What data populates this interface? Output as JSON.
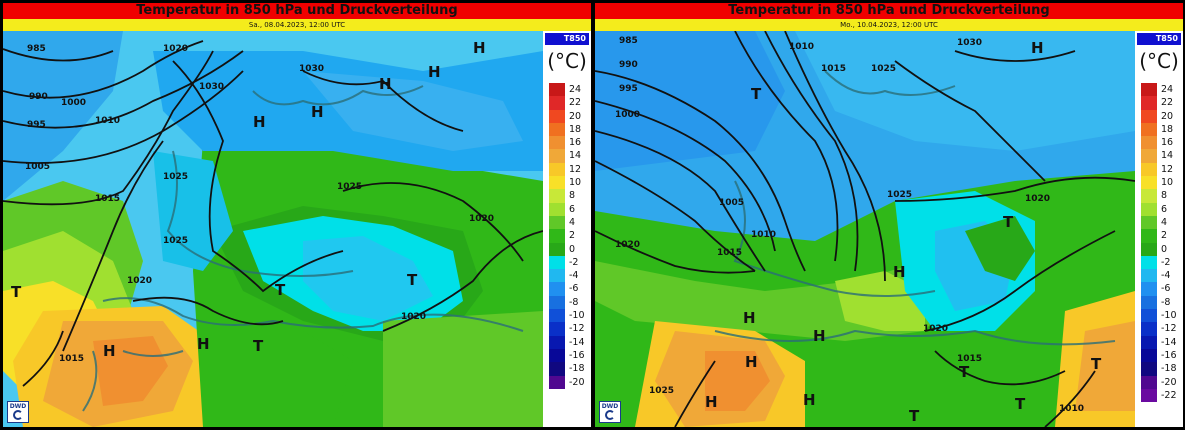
{
  "panels": [
    {
      "title": "Temperatur in 850 hPa und Druckverteilung",
      "date": "Sa., 08.04.2023, 12:00 UTC",
      "tag": "T850",
      "unit": "(°C)",
      "logo": "DWD",
      "isobar_labels": [
        "985",
        "1020",
        "990",
        "1000",
        "1030",
        "995",
        "1010",
        "1005",
        "1030",
        "1025",
        "1025",
        "1015",
        "1025",
        "1020",
        "1020",
        "1015",
        "1020"
      ],
      "pressure_centers": [
        "H",
        "H",
        "H",
        "H",
        "H",
        "H",
        "H",
        "T",
        "T",
        "T",
        "T"
      ]
    },
    {
      "title": "Temperatur in 850 hPa und Druckverteilung",
      "date": "Mo., 10.04.2023, 12:00 UTC",
      "tag": "T850",
      "unit": "(°C)",
      "logo": "DWD",
      "isobar_labels": [
        "985",
        "1010",
        "1030",
        "990",
        "1015",
        "1025",
        "995",
        "1000",
        "1025",
        "1005",
        "1010",
        "1020",
        "1015",
        "1020",
        "1020",
        "1015",
        "1025",
        "1010"
      ],
      "pressure_centers": [
        "H",
        "T",
        "T",
        "H",
        "H",
        "H",
        "H",
        "H",
        "H",
        "T",
        "T",
        "T",
        "T"
      ]
    }
  ],
  "legend_left": {
    "labels": [
      "24",
      "22",
      "20",
      "18",
      "16",
      "14",
      "12",
      "10",
      "8",
      "6",
      "4",
      "2",
      "0",
      "-2",
      "-4",
      "-6",
      "-8",
      "-10",
      "-12",
      "-14",
      "-16",
      "-18",
      "-20"
    ],
    "colors": [
      "#c81818",
      "#e02828",
      "#f04820",
      "#f07020",
      "#f09030",
      "#f0a838",
      "#f8c828",
      "#f8e028",
      "#c8e838",
      "#a0e030",
      "#60c828",
      "#30b818",
      "#28a818",
      "#00e0e8",
      "#20b8f0",
      "#2090f0",
      "#1870e0",
      "#1050d8",
      "#0a30c8",
      "#0818b0",
      "#080898",
      "#100880",
      "#500890"
    ]
  },
  "legend_right": {
    "labels": [
      "24",
      "22",
      "20",
      "18",
      "16",
      "14",
      "12",
      "10",
      "8",
      "6",
      "4",
      "2",
      "0",
      "-2",
      "-4",
      "-6",
      "-8",
      "-10",
      "-12",
      "-14",
      "-16",
      "-18",
      "-20",
      "-22"
    ],
    "colors": [
      "#c81818",
      "#e02828",
      "#f04820",
      "#f07020",
      "#f09030",
      "#f0a838",
      "#f8c828",
      "#f8e028",
      "#c8e838",
      "#a0e030",
      "#60c828",
      "#30b818",
      "#28a818",
      "#00e0e8",
      "#20b8f0",
      "#2090f0",
      "#1870e0",
      "#1050d8",
      "#0a30c8",
      "#0818b0",
      "#080898",
      "#100880",
      "#500890",
      "#6a0aa0"
    ]
  }
}
